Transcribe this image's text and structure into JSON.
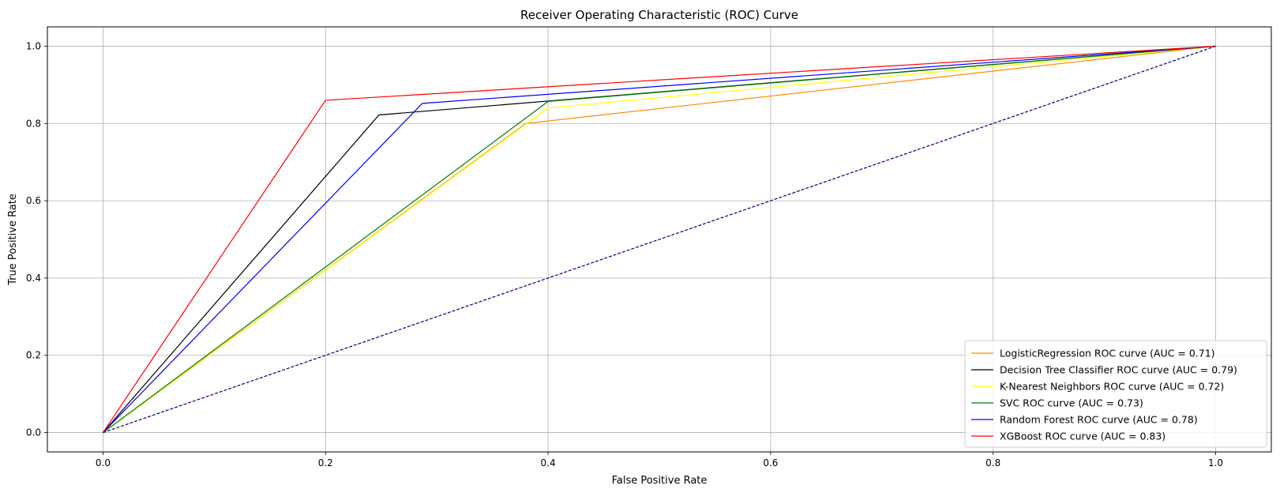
{
  "chart_data": {
    "type": "line",
    "title": "Receiver Operating Characteristic (ROC) Curve",
    "xlabel": "False Positive Rate",
    "ylabel": "True Positive Rate",
    "xlim": [
      -0.05,
      1.05
    ],
    "ylim": [
      -0.05,
      1.05
    ],
    "x_ticks": [
      0.0,
      0.2,
      0.4,
      0.6,
      0.8,
      1.0
    ],
    "y_ticks": [
      0.0,
      0.2,
      0.4,
      0.6,
      0.8,
      1.0
    ],
    "x_tick_labels": [
      "0.0",
      "0.2",
      "0.4",
      "0.6",
      "0.8",
      "1.0"
    ],
    "y_tick_labels": [
      "0.0",
      "0.2",
      "0.4",
      "0.6",
      "0.8",
      "1.0"
    ],
    "grid": true,
    "legend_position": "bottom-right",
    "series": [
      {
        "name": "LogisticRegression ROC curve (AUC = 0.71)",
        "color": "#ff8c00",
        "x": [
          0.0,
          0.38,
          1.0
        ],
        "y": [
          0.0,
          0.8,
          1.0
        ]
      },
      {
        "name": "Decision Tree Classifier ROC curve (AUC = 0.79)",
        "color": "#000000",
        "x": [
          0.0,
          0.248,
          1.0
        ],
        "y": [
          0.0,
          0.822,
          1.0
        ]
      },
      {
        "name": "K-Nearest Neighbors ROC curve (AUC = 0.72)",
        "color": "#ffff00",
        "x": [
          0.0,
          0.4,
          1.0
        ],
        "y": [
          0.0,
          0.84,
          1.0
        ]
      },
      {
        "name": "SVC ROC curve (AUC = 0.73)",
        "color": "#008000",
        "x": [
          0.0,
          0.4,
          1.0
        ],
        "y": [
          0.0,
          0.857,
          1.0
        ]
      },
      {
        "name": "Random Forest ROC curve (AUC = 0.78)",
        "color": "#0000ff",
        "x": [
          0.0,
          0.287,
          1.0
        ],
        "y": [
          0.0,
          0.852,
          1.0
        ]
      },
      {
        "name": "XGBoost ROC curve (AUC = 0.83)",
        "color": "#ff0000",
        "x": [
          0.0,
          0.2,
          1.0
        ],
        "y": [
          0.0,
          0.86,
          1.0
        ]
      }
    ],
    "reference_line": {
      "color": "#000080",
      "style": "dashed",
      "x": [
        0.0,
        1.0
      ],
      "y": [
        0.0,
        1.0
      ]
    }
  }
}
